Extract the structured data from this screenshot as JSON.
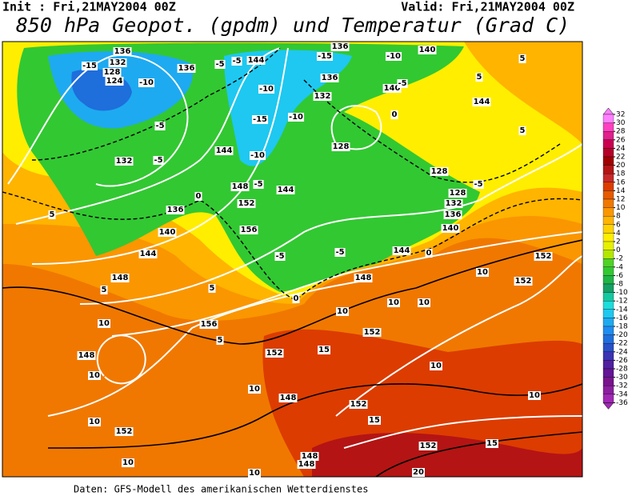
{
  "header": {
    "init": "Init : Fri,21MAY2004 00Z",
    "valid": "Valid: Fri,21MAY2004 00Z",
    "title": "850 hPa Geopot. (gpdm) und Temperatur (Grad C)"
  },
  "footer": "Daten: GFS-Modell des amerikanischen Wetterdienstes",
  "colorbar": {
    "levels": [
      32,
      30,
      28,
      26,
      24,
      22,
      20,
      18,
      16,
      14,
      12,
      10,
      8,
      6,
      4,
      2,
      0,
      -2,
      -4,
      -6,
      -8,
      -10,
      -12,
      -14,
      -16,
      -18,
      -20,
      -22,
      -24,
      -26,
      -28,
      -30,
      -32,
      -34,
      -36
    ],
    "colors": [
      "#ff80ff",
      "#ff40c0",
      "#e0208c",
      "#c80050",
      "#b40028",
      "#a00000",
      "#b41414",
      "#c82828",
      "#dc3c00",
      "#e65a00",
      "#f07800",
      "#fa9600",
      "#ffb400",
      "#ffd200",
      "#ffee00",
      "#e6f000",
      "#b4e600",
      "#50d228",
      "#32c832",
      "#1eb446",
      "#14a064",
      "#14c8a0",
      "#1edcdc",
      "#1ec8f0",
      "#1eaaf0",
      "#1e8cf0",
      "#1e6edc",
      "#2850c8",
      "#3c32b4",
      "#5020a0",
      "#641496",
      "#78148c",
      "#8c1ea0",
      "#a028b4"
    ]
  },
  "contour_labels": [
    -15,
    132,
    128,
    124,
    -10,
    136,
    136,
    -5,
    -5,
    144,
    -15,
    136,
    -10,
    140,
    136,
    140,
    -5,
    132,
    -10,
    -10,
    -15,
    -5,
    128,
    -5,
    132,
    144,
    -10,
    148,
    -5,
    144,
    152,
    136,
    140,
    156,
    144,
    128,
    128,
    132,
    136,
    140,
    144,
    0,
    -5,
    -5,
    148,
    148,
    5,
    5,
    0,
    10,
    10,
    10,
    10,
    152,
    152,
    10,
    156,
    5,
    152,
    15,
    152,
    10,
    10,
    148,
    10,
    148,
    152,
    15,
    10,
    10,
    152,
    10,
    10,
    148,
    148,
    152,
    15,
    20,
    5,
    5,
    144,
    5,
    0,
    0,
    -5,
    5
  ]
}
